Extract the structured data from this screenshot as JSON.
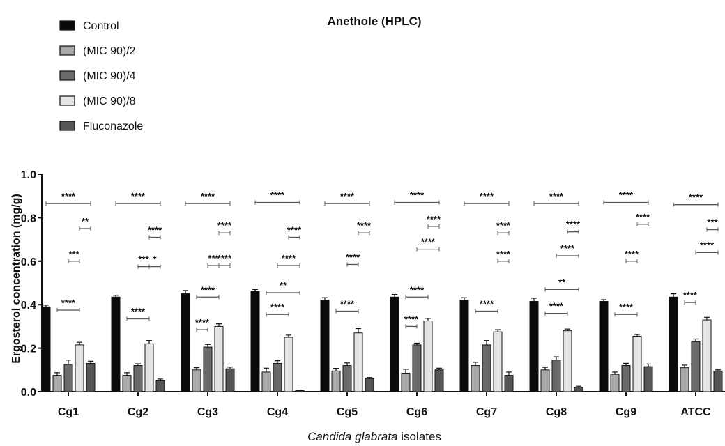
{
  "chart_data": {
    "type": "bar",
    "title": "Anethole (HPLC)",
    "xlabel_italic": "Candida glabrata",
    "xlabel_rest": " isolates",
    "ylabel": "Ergosterol concentration (mg/g)",
    "ylim": [
      0,
      1.0
    ],
    "yticks": [
      "0.0",
      "0.2",
      "0.4",
      "0.6",
      "0.8",
      "1.0"
    ],
    "grid": false,
    "legend_position": "top-left",
    "categories": [
      "Cg1",
      "Cg2",
      "Cg3",
      "Cg4",
      "Cg5",
      "Cg6",
      "Cg7",
      "Cg8",
      "Cg9",
      "ATCC"
    ],
    "series": [
      {
        "name": "Control",
        "color": "#0a0a0a",
        "values": [
          0.39,
          0.435,
          0.45,
          0.46,
          0.42,
          0.435,
          0.42,
          0.415,
          0.415,
          0.435
        ],
        "errors": [
          0.008,
          0.008,
          0.015,
          0.01,
          0.012,
          0.012,
          0.012,
          0.015,
          0.008,
          0.015
        ]
      },
      {
        "name": "(MIC 90)/2",
        "color": "#a9a9a9",
        "values": [
          0.075,
          0.075,
          0.1,
          0.09,
          0.095,
          0.085,
          0.12,
          0.1,
          0.08,
          0.11
        ],
        "errors": [
          0.012,
          0.012,
          0.01,
          0.018,
          0.012,
          0.018,
          0.015,
          0.012,
          0.01,
          0.012
        ]
      },
      {
        "name": "(MIC 90)/4",
        "color": "#6b6b6b",
        "values": [
          0.125,
          0.12,
          0.205,
          0.13,
          0.12,
          0.215,
          0.215,
          0.145,
          0.12,
          0.23
        ],
        "errors": [
          0.02,
          0.008,
          0.012,
          0.012,
          0.012,
          0.008,
          0.02,
          0.015,
          0.01,
          0.012
        ]
      },
      {
        "name": "(MIC 90)/8",
        "color": "#e4e4e4",
        "values": [
          0.215,
          0.22,
          0.3,
          0.25,
          0.27,
          0.325,
          0.275,
          0.28,
          0.255,
          0.33
        ],
        "errors": [
          0.012,
          0.015,
          0.012,
          0.01,
          0.02,
          0.012,
          0.01,
          0.008,
          0.008,
          0.012
        ]
      },
      {
        "name": "Fluconazole",
        "color": "#555555",
        "values": [
          0.13,
          0.05,
          0.105,
          0.005,
          0.06,
          0.1,
          0.075,
          0.02,
          0.115,
          0.095
        ],
        "errors": [
          0.01,
          0.008,
          0.008,
          0.002,
          0.005,
          0.008,
          0.015,
          0.005,
          0.012,
          0.005
        ]
      }
    ],
    "significance": [
      {
        "cat": 0,
        "from": 0,
        "to": 4,
        "y": 0.865,
        "label": "****"
      },
      {
        "cat": 0,
        "from": 3,
        "to": 4,
        "y": 0.75,
        "label": "**"
      },
      {
        "cat": 0,
        "from": 2,
        "to": 3,
        "y": 0.6,
        "label": "***"
      },
      {
        "cat": 0,
        "from": 1,
        "to": 3,
        "y": 0.375,
        "label": "****"
      },
      {
        "cat": 1,
        "from": 0,
        "to": 4,
        "y": 0.865,
        "label": "****"
      },
      {
        "cat": 1,
        "from": 3,
        "to": 4,
        "y": 0.71,
        "label": "****"
      },
      {
        "cat": 1,
        "from": 2,
        "to": 3,
        "y": 0.575,
        "label": "***"
      },
      {
        "cat": 1,
        "from": 3,
        "to": 4,
        "y": 0.575,
        "label": "*"
      },
      {
        "cat": 1,
        "from": 1,
        "to": 3,
        "y": 0.335,
        "label": "****"
      },
      {
        "cat": 2,
        "from": 0,
        "to": 4,
        "y": 0.865,
        "label": "****"
      },
      {
        "cat": 2,
        "from": 3,
        "to": 4,
        "y": 0.73,
        "label": "****"
      },
      {
        "cat": 2,
        "from": 2,
        "to": 3,
        "y": 0.58,
        "label": "***"
      },
      {
        "cat": 2,
        "from": 3,
        "to": 4,
        "y": 0.58,
        "label": "****"
      },
      {
        "cat": 2,
        "from": 1,
        "to": 3,
        "y": 0.435,
        "label": "****"
      },
      {
        "cat": 2,
        "from": 1,
        "to": 2,
        "y": 0.285,
        "label": "****"
      },
      {
        "cat": 3,
        "from": 0,
        "to": 4,
        "y": 0.87,
        "label": "****"
      },
      {
        "cat": 3,
        "from": 3,
        "to": 4,
        "y": 0.71,
        "label": "****"
      },
      {
        "cat": 3,
        "from": 2,
        "to": 4,
        "y": 0.58,
        "label": "****"
      },
      {
        "cat": 3,
        "from": 1,
        "to": 4,
        "y": 0.455,
        "label": "**"
      },
      {
        "cat": 3,
        "from": 1,
        "to": 3,
        "y": 0.355,
        "label": "****"
      },
      {
        "cat": 4,
        "from": 0,
        "to": 4,
        "y": 0.865,
        "label": "****"
      },
      {
        "cat": 4,
        "from": 3,
        "to": 4,
        "y": 0.73,
        "label": "****"
      },
      {
        "cat": 4,
        "from": 2,
        "to": 3,
        "y": 0.585,
        "label": "****"
      },
      {
        "cat": 4,
        "from": 1,
        "to": 3,
        "y": 0.37,
        "label": "****"
      },
      {
        "cat": 5,
        "from": 0,
        "to": 4,
        "y": 0.87,
        "label": "****"
      },
      {
        "cat": 5,
        "from": 3,
        "to": 4,
        "y": 0.76,
        "label": "****"
      },
      {
        "cat": 5,
        "from": 2,
        "to": 4,
        "y": 0.655,
        "label": "****"
      },
      {
        "cat": 5,
        "from": 1,
        "to": 3,
        "y": 0.435,
        "label": "****"
      },
      {
        "cat": 5,
        "from": 1,
        "to": 2,
        "y": 0.3,
        "label": "****"
      },
      {
        "cat": 6,
        "from": 0,
        "to": 4,
        "y": 0.865,
        "label": "****"
      },
      {
        "cat": 6,
        "from": 3,
        "to": 4,
        "y": 0.73,
        "label": "****"
      },
      {
        "cat": 6,
        "from": 3,
        "to": 4,
        "y": 0.6,
        "label": "****"
      },
      {
        "cat": 6,
        "from": 1,
        "to": 3,
        "y": 0.37,
        "label": "****"
      },
      {
        "cat": 7,
        "from": 0,
        "to": 4,
        "y": 0.865,
        "label": "****"
      },
      {
        "cat": 7,
        "from": 3,
        "to": 4,
        "y": 0.735,
        "label": "****"
      },
      {
        "cat": 7,
        "from": 2,
        "to": 4,
        "y": 0.625,
        "label": "****"
      },
      {
        "cat": 7,
        "from": 1,
        "to": 4,
        "y": 0.47,
        "label": "**"
      },
      {
        "cat": 7,
        "from": 1,
        "to": 3,
        "y": 0.36,
        "label": "****"
      },
      {
        "cat": 8,
        "from": 0,
        "to": 4,
        "y": 0.87,
        "label": "****"
      },
      {
        "cat": 8,
        "from": 3,
        "to": 4,
        "y": 0.77,
        "label": "****"
      },
      {
        "cat": 8,
        "from": 2,
        "to": 3,
        "y": 0.6,
        "label": "****"
      },
      {
        "cat": 8,
        "from": 1,
        "to": 3,
        "y": 0.355,
        "label": "****"
      },
      {
        "cat": 9,
        "from": 0,
        "to": 4,
        "y": 0.86,
        "label": "****"
      },
      {
        "cat": 9,
        "from": 3,
        "to": 4,
        "y": 0.745,
        "label": "***"
      },
      {
        "cat": 9,
        "from": 2,
        "to": 4,
        "y": 0.64,
        "label": "****"
      },
      {
        "cat": 9,
        "from": 1,
        "to": 2,
        "y": 0.41,
        "label": "****"
      }
    ]
  }
}
